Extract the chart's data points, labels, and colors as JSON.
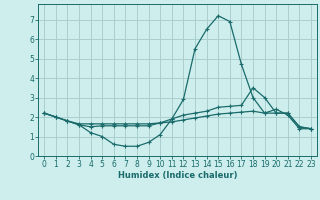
{
  "xlabel": "Humidex (Indice chaleur)",
  "bg_color": "#ceeeed",
  "grid_color": "#aacfcf",
  "line_color": "#1a6b6b",
  "xlim": [
    -0.5,
    23.5
  ],
  "ylim": [
    0,
    7.8
  ],
  "xticks": [
    0,
    1,
    2,
    3,
    4,
    5,
    6,
    7,
    8,
    9,
    10,
    11,
    12,
    13,
    14,
    15,
    16,
    17,
    18,
    19,
    20,
    21,
    22,
    23
  ],
  "yticks": [
    0,
    1,
    2,
    3,
    4,
    5,
    6,
    7
  ],
  "lines": [
    {
      "x": [
        0,
        1,
        2,
        3,
        4,
        5,
        6,
        7,
        8,
        9,
        10,
        11,
        12,
        13,
        14,
        15,
        16,
        17,
        18,
        19,
        20,
        21,
        22,
        23
      ],
      "y": [
        2.2,
        2.0,
        1.8,
        1.6,
        1.2,
        1.0,
        0.6,
        0.5,
        0.5,
        0.7,
        1.1,
        1.9,
        2.9,
        5.5,
        6.5,
        7.2,
        6.9,
        4.7,
        3.0,
        2.2,
        2.4,
        2.1,
        1.4,
        1.4
      ]
    },
    {
      "x": [
        0,
        1,
        2,
        3,
        4,
        5,
        6,
        7,
        8,
        9,
        10,
        11,
        12,
        13,
        14,
        15,
        16,
        17,
        18,
        19,
        20,
        21,
        22,
        23
      ],
      "y": [
        2.2,
        2.0,
        1.8,
        1.6,
        1.5,
        1.55,
        1.55,
        1.55,
        1.55,
        1.55,
        1.7,
        1.9,
        2.1,
        2.2,
        2.3,
        2.5,
        2.55,
        2.6,
        3.5,
        3.0,
        2.2,
        2.2,
        1.5,
        1.4
      ]
    },
    {
      "x": [
        0,
        1,
        2,
        3,
        4,
        5,
        6,
        7,
        8,
        9,
        10,
        11,
        12,
        13,
        14,
        15,
        16,
        17,
        18,
        19,
        20,
        21,
        22,
        23
      ],
      "y": [
        2.2,
        2.0,
        1.8,
        1.65,
        1.65,
        1.65,
        1.65,
        1.65,
        1.65,
        1.65,
        1.7,
        1.75,
        1.85,
        1.95,
        2.05,
        2.15,
        2.2,
        2.25,
        2.3,
        2.2,
        2.2,
        2.2,
        1.5,
        1.4
      ]
    }
  ]
}
